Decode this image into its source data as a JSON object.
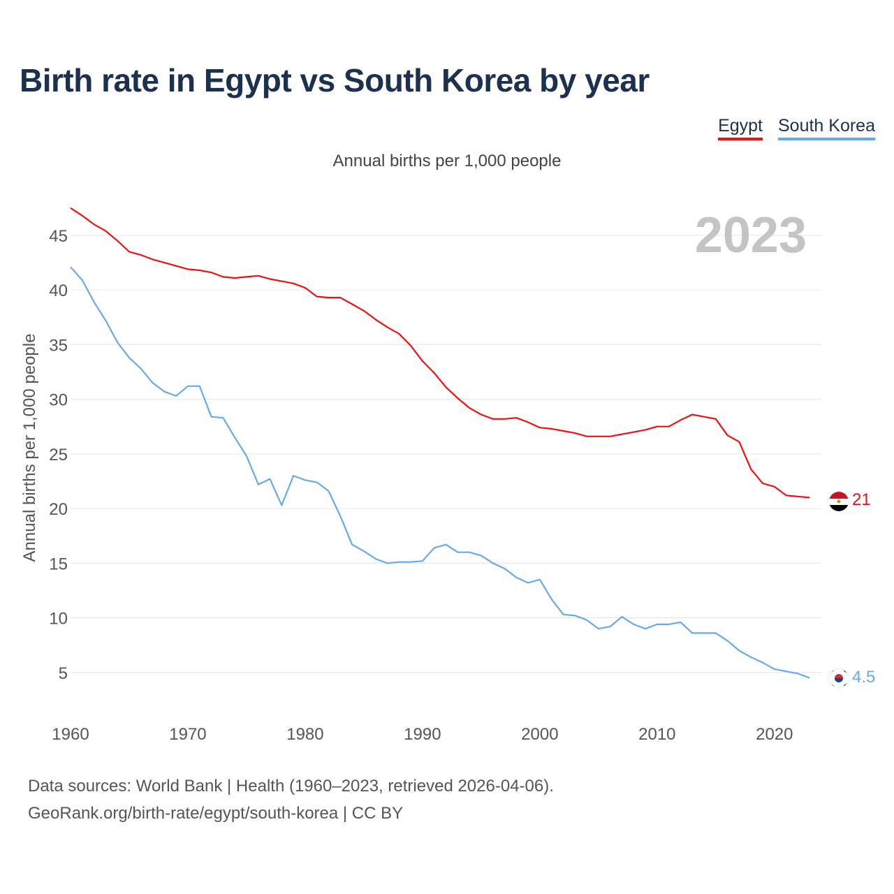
{
  "title": "Birth rate in Egypt vs South Korea by year",
  "subtitle": "Annual births per 1,000 people",
  "legend": [
    {
      "label": "Egypt",
      "color": "#ee1111"
    },
    {
      "label": "South Korea",
      "color": "#66aaee"
    }
  ],
  "source": {
    "line1": "Data sources: World Bank | Health (1960–2023, retrieved 2026-04-06).",
    "line2": "GeoRank.org/birth-rate/egypt/south-korea | CC BY"
  },
  "chart_data": {
    "type": "line",
    "title": "Birth rate in Egypt vs South Korea by year",
    "xlabel": "",
    "ylabel": "Annual births per 1,000 people",
    "watermark_year": "2023",
    "xlim": [
      1960,
      2024
    ],
    "ylim": [
      0,
      48
    ],
    "x_ticks": [
      1960,
      1970,
      1980,
      1990,
      2000,
      2010,
      2020
    ],
    "y_ticks": [
      5,
      10,
      15,
      20,
      25,
      30,
      35,
      40,
      45
    ],
    "grid": true,
    "x": [
      1960,
      1961,
      1962,
      1963,
      1964,
      1965,
      1966,
      1967,
      1968,
      1969,
      1970,
      1971,
      1972,
      1973,
      1974,
      1975,
      1976,
      1977,
      1978,
      1979,
      1980,
      1981,
      1982,
      1983,
      1984,
      1985,
      1986,
      1987,
      1988,
      1989,
      1990,
      1991,
      1992,
      1993,
      1994,
      1995,
      1996,
      1997,
      1998,
      1999,
      2000,
      2001,
      2002,
      2003,
      2004,
      2005,
      2006,
      2007,
      2008,
      2009,
      2010,
      2011,
      2012,
      2013,
      2014,
      2015,
      2016,
      2017,
      2018,
      2019,
      2020,
      2021,
      2022,
      2023
    ],
    "series": [
      {
        "name": "Egypt",
        "color": "#ee1111",
        "end_label": "21",
        "values": [
          47.5,
          46.8,
          46.0,
          45.4,
          44.5,
          43.5,
          43.2,
          42.8,
          42.5,
          42.2,
          41.9,
          41.8,
          41.6,
          41.2,
          41.1,
          41.2,
          41.3,
          41.0,
          40.8,
          40.6,
          40.2,
          39.4,
          39.3,
          39.3,
          38.7,
          38.1,
          37.3,
          36.6,
          36.0,
          34.9,
          33.5,
          32.4,
          31.1,
          30.1,
          29.2,
          28.6,
          28.2,
          28.2,
          28.3,
          27.9,
          27.4,
          27.3,
          27.1,
          26.9,
          26.6,
          26.6,
          26.6,
          26.8,
          27.0,
          27.2,
          27.5,
          27.5,
          28.1,
          28.6,
          28.4,
          28.2,
          26.7,
          26.1,
          23.6,
          22.3,
          22.0,
          21.2,
          21.1,
          21.0
        ]
      },
      {
        "name": "South Korea",
        "color": "#66aaee",
        "end_label": "4.5",
        "values": [
          42.1,
          40.9,
          38.9,
          37.2,
          35.2,
          33.8,
          32.8,
          31.5,
          30.7,
          30.3,
          31.2,
          31.2,
          28.4,
          28.3,
          26.5,
          24.8,
          22.2,
          22.7,
          20.3,
          23.0,
          22.6,
          22.4,
          21.6,
          19.3,
          16.7,
          16.1,
          15.4,
          15.0,
          15.1,
          15.1,
          15.2,
          16.4,
          16.7,
          16.0,
          16.0,
          15.7,
          15.0,
          14.5,
          13.7,
          13.2,
          13.5,
          11.7,
          10.3,
          10.2,
          9.8,
          9.0,
          9.2,
          10.1,
          9.4,
          9.0,
          9.4,
          9.4,
          9.6,
          8.6,
          8.6,
          8.6,
          7.9,
          7.0,
          6.4,
          5.9,
          5.3,
          5.1,
          4.9,
          4.5
        ]
      }
    ]
  }
}
